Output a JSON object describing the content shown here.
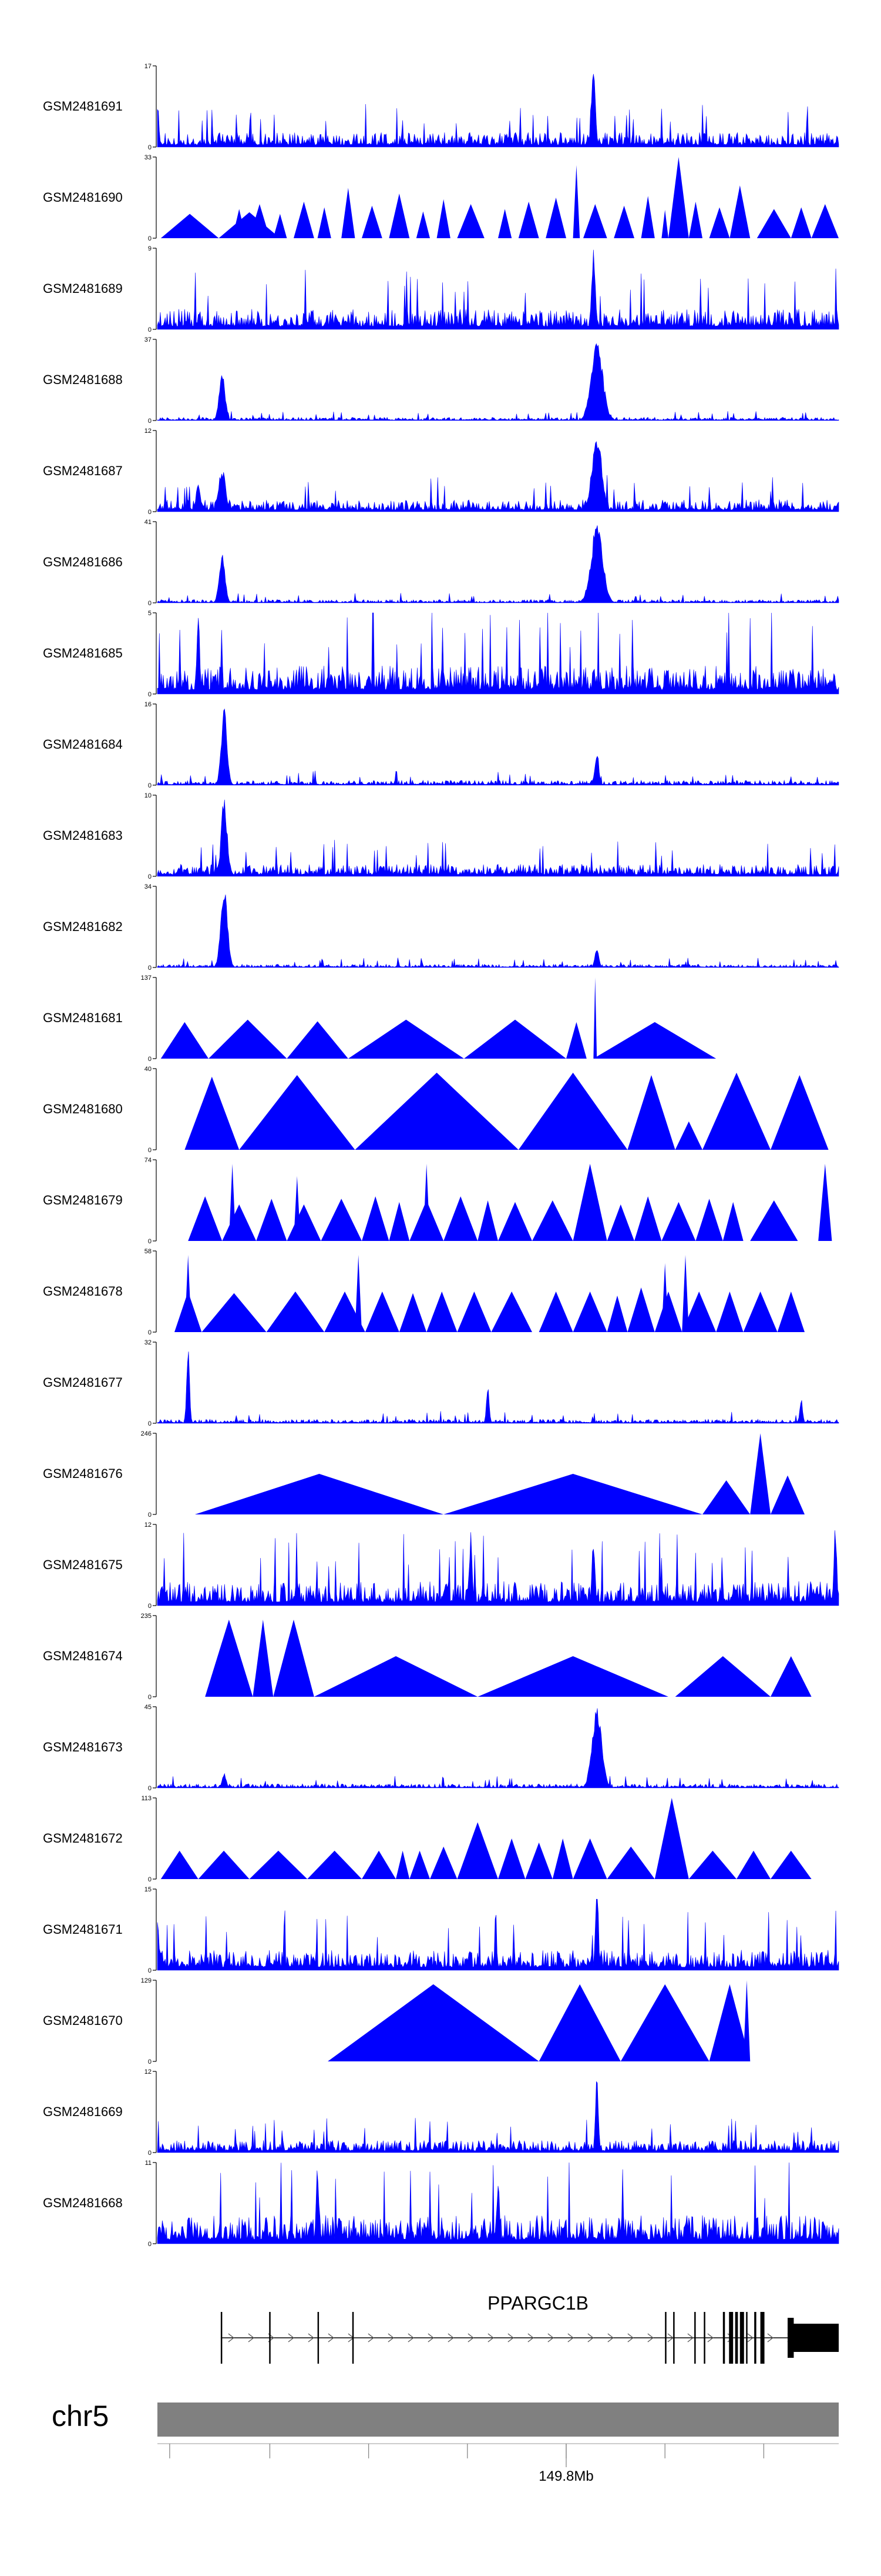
{
  "chart_data": {
    "type": "area",
    "chromosome": "chr5",
    "gene": "PPARGC1B",
    "axis_label": "149.8Mb",
    "colors": {
      "signal": "#0000ff",
      "ideogram": "#808080",
      "gene": "#000000",
      "axis": "#000000",
      "text": "#000000"
    },
    "tracks": [
      {
        "name": "GSM2481691",
        "ymax": 17,
        "ymin": 0,
        "style": "dense",
        "base": 0.18,
        "seed": 11,
        "peaks": [
          {
            "pos": 0.64,
            "h": 1.0,
            "w": 0.004
          },
          {
            "pos": 0.0,
            "h": 0.6,
            "w": 0.003
          }
        ]
      },
      {
        "name": "GSM2481690",
        "ymax": 33,
        "ymin": 0,
        "style": "triangles",
        "tris": [
          [
            0.005,
            0.09,
            0.3
          ],
          [
            0.09,
            0.18,
            0.32
          ],
          [
            0.11,
            0.13,
            0.36
          ],
          [
            0.135,
            0.165,
            0.42
          ],
          [
            0.17,
            0.19,
            0.3
          ],
          [
            0.2,
            0.23,
            0.45
          ],
          [
            0.235,
            0.255,
            0.38
          ],
          [
            0.27,
            0.29,
            0.62
          ],
          [
            0.3,
            0.33,
            0.4
          ],
          [
            0.34,
            0.37,
            0.55
          ],
          [
            0.38,
            0.4,
            0.33
          ],
          [
            0.41,
            0.43,
            0.48
          ],
          [
            0.44,
            0.48,
            0.42
          ],
          [
            0.5,
            0.52,
            0.36
          ],
          [
            0.53,
            0.56,
            0.45
          ],
          [
            0.57,
            0.6,
            0.5
          ],
          [
            0.61,
            0.62,
            0.9
          ],
          [
            0.625,
            0.66,
            0.42
          ],
          [
            0.67,
            0.7,
            0.4
          ],
          [
            0.71,
            0.73,
            0.52
          ],
          [
            0.74,
            0.75,
            0.35
          ],
          [
            0.75,
            0.78,
            1.0
          ],
          [
            0.78,
            0.8,
            0.45
          ],
          [
            0.81,
            0.84,
            0.38
          ],
          [
            0.84,
            0.87,
            0.65
          ],
          [
            0.88,
            0.93,
            0.36
          ],
          [
            0.93,
            0.96,
            0.38
          ],
          [
            0.96,
            1.0,
            0.42
          ]
        ]
      },
      {
        "name": "GSM2481689",
        "ymax": 9,
        "ymin": 0,
        "style": "dense",
        "base": 0.25,
        "seed": 23,
        "peaks": [
          {
            "pos": 0.64,
            "h": 1.0,
            "w": 0.004
          }
        ]
      },
      {
        "name": "GSM2481688",
        "ymax": 37,
        "ymin": 0,
        "style": "dense",
        "base": 0.04,
        "seed": 31,
        "peaks": [
          {
            "pos": 0.095,
            "h": 0.65,
            "w": 0.006
          },
          {
            "pos": 0.645,
            "h": 1.0,
            "w": 0.012
          }
        ]
      },
      {
        "name": "GSM2481687",
        "ymax": 12,
        "ymin": 0,
        "style": "dense",
        "base": 0.15,
        "seed": 37,
        "peaks": [
          {
            "pos": 0.095,
            "h": 0.55,
            "w": 0.007
          },
          {
            "pos": 0.645,
            "h": 1.0,
            "w": 0.01
          },
          {
            "pos": 0.06,
            "h": 0.4,
            "w": 0.004
          }
        ]
      },
      {
        "name": "GSM2481686",
        "ymax": 41,
        "ymin": 0,
        "style": "dense",
        "base": 0.04,
        "seed": 41,
        "peaks": [
          {
            "pos": 0.095,
            "h": 0.65,
            "w": 0.006
          },
          {
            "pos": 0.645,
            "h": 1.0,
            "w": 0.012
          }
        ]
      },
      {
        "name": "GSM2481685",
        "ymax": 5,
        "ymin": 0,
        "style": "dense",
        "base": 0.35,
        "seed": 43,
        "peaks": [
          {
            "pos": 0.06,
            "h": 1.0,
            "w": 0.003
          }
        ]
      },
      {
        "name": "GSM2481684",
        "ymax": 16,
        "ymin": 0,
        "style": "dense",
        "base": 0.06,
        "seed": 47,
        "peaks": [
          {
            "pos": 0.098,
            "h": 1.0,
            "w": 0.006
          },
          {
            "pos": 0.645,
            "h": 0.45,
            "w": 0.004
          }
        ]
      },
      {
        "name": "GSM2481683",
        "ymax": 10,
        "ymin": 0,
        "style": "dense",
        "base": 0.15,
        "seed": 53,
        "peaks": [
          {
            "pos": 0.098,
            "h": 1.0,
            "w": 0.006
          }
        ]
      },
      {
        "name": "GSM2481682",
        "ymax": 34,
        "ymin": 0,
        "style": "dense",
        "base": 0.04,
        "seed": 59,
        "peaks": [
          {
            "pos": 0.098,
            "h": 1.0,
            "w": 0.007
          },
          {
            "pos": 0.645,
            "h": 0.25,
            "w": 0.004
          }
        ]
      },
      {
        "name": "GSM2481681",
        "ymax": 137,
        "ymin": 0,
        "style": "triangles",
        "tris": [
          [
            0.005,
            0.075,
            0.45
          ],
          [
            0.075,
            0.19,
            0.48
          ],
          [
            0.19,
            0.28,
            0.46
          ],
          [
            0.28,
            0.45,
            0.48
          ],
          [
            0.45,
            0.6,
            0.48
          ],
          [
            0.6,
            0.63,
            0.45
          ],
          [
            0.64,
            0.82,
            0.45
          ],
          [
            0.64,
            0.645,
            1.0
          ]
        ]
      },
      {
        "name": "GSM2481680",
        "ymax": 40,
        "ymin": 0,
        "style": "triangles",
        "tris": [
          [
            0.04,
            0.12,
            0.9
          ],
          [
            0.12,
            0.29,
            0.92
          ],
          [
            0.29,
            0.53,
            0.95
          ],
          [
            0.53,
            0.69,
            0.95
          ],
          [
            0.69,
            0.76,
            0.92
          ],
          [
            0.76,
            0.8,
            0.35
          ],
          [
            0.8,
            0.9,
            0.95
          ],
          [
            0.9,
            0.985,
            0.92
          ]
        ]
      },
      {
        "name": "GSM2481679",
        "ymax": 74,
        "ymin": 0,
        "style": "triangles",
        "tris": [
          [
            0.045,
            0.095,
            0.55
          ],
          [
            0.095,
            0.145,
            0.45
          ],
          [
            0.145,
            0.19,
            0.52
          ],
          [
            0.19,
            0.24,
            0.45
          ],
          [
            0.24,
            0.3,
            0.52
          ],
          [
            0.3,
            0.34,
            0.55
          ],
          [
            0.34,
            0.37,
            0.48
          ],
          [
            0.37,
            0.42,
            0.5
          ],
          [
            0.42,
            0.47,
            0.55
          ],
          [
            0.47,
            0.5,
            0.5
          ],
          [
            0.5,
            0.55,
            0.48
          ],
          [
            0.55,
            0.61,
            0.5
          ],
          [
            0.61,
            0.66,
            0.95
          ],
          [
            0.66,
            0.7,
            0.45
          ],
          [
            0.7,
            0.74,
            0.55
          ],
          [
            0.74,
            0.79,
            0.48
          ],
          [
            0.79,
            0.83,
            0.52
          ],
          [
            0.83,
            0.86,
            0.48
          ],
          [
            0.87,
            0.94,
            0.5
          ],
          [
            0.97,
            0.99,
            0.95
          ],
          [
            0.105,
            0.115,
            0.95
          ],
          [
            0.2,
            0.21,
            0.8
          ],
          [
            0.39,
            0.4,
            0.95
          ]
        ]
      },
      {
        "name": "GSM2481678",
        "ymax": 58,
        "ymin": 0,
        "style": "triangles",
        "tris": [
          [
            0.025,
            0.065,
            0.5
          ],
          [
            0.065,
            0.16,
            0.48
          ],
          [
            0.16,
            0.245,
            0.5
          ],
          [
            0.245,
            0.305,
            0.5
          ],
          [
            0.305,
            0.355,
            0.5
          ],
          [
            0.355,
            0.395,
            0.48
          ],
          [
            0.395,
            0.44,
            0.5
          ],
          [
            0.44,
            0.49,
            0.5
          ],
          [
            0.49,
            0.55,
            0.5
          ],
          [
            0.56,
            0.61,
            0.5
          ],
          [
            0.61,
            0.66,
            0.5
          ],
          [
            0.66,
            0.69,
            0.45
          ],
          [
            0.69,
            0.73,
            0.55
          ],
          [
            0.73,
            0.77,
            0.5
          ],
          [
            0.77,
            0.82,
            0.5
          ],
          [
            0.82,
            0.86,
            0.5
          ],
          [
            0.86,
            0.91,
            0.5
          ],
          [
            0.91,
            0.95,
            0.5
          ],
          [
            0.04,
            0.05,
            0.95
          ],
          [
            0.29,
            0.3,
            0.95
          ],
          [
            0.77,
            0.78,
            0.95
          ],
          [
            0.74,
            0.75,
            0.85
          ]
        ]
      },
      {
        "name": "GSM2481677",
        "ymax": 32,
        "ymin": 0,
        "style": "dense",
        "base": 0.05,
        "seed": 61,
        "peaks": [
          {
            "pos": 0.045,
            "h": 1.0,
            "w": 0.003
          },
          {
            "pos": 0.485,
            "h": 0.45,
            "w": 0.003
          },
          {
            "pos": 0.945,
            "h": 0.3,
            "w": 0.003
          }
        ]
      },
      {
        "name": "GSM2481676",
        "ymax": 246,
        "ymin": 0,
        "style": "triangles",
        "tris": [
          [
            0.055,
            0.42,
            0.5
          ],
          [
            0.42,
            0.8,
            0.5
          ],
          [
            0.8,
            0.87,
            0.42
          ],
          [
            0.87,
            0.9,
            1.0
          ],
          [
            0.9,
            0.95,
            0.48
          ]
        ]
      },
      {
        "name": "GSM2481675",
        "ymax": 12,
        "ymin": 0,
        "style": "dense",
        "base": 0.3,
        "seed": 67,
        "peaks": [
          {
            "pos": 0.46,
            "h": 0.95,
            "w": 0.003
          },
          {
            "pos": 0.995,
            "h": 1.0,
            "w": 0.003
          },
          {
            "pos": 0.64,
            "h": 0.9,
            "w": 0.003
          }
        ]
      },
      {
        "name": "GSM2481674",
        "ymax": 235,
        "ymin": 0,
        "style": "triangles",
        "tris": [
          [
            0.07,
            0.14,
            0.95
          ],
          [
            0.14,
            0.17,
            0.95
          ],
          [
            0.17,
            0.23,
            0.95
          ],
          [
            0.23,
            0.47,
            0.5
          ],
          [
            0.47,
            0.75,
            0.5
          ],
          [
            0.76,
            0.9,
            0.5
          ],
          [
            0.9,
            0.96,
            0.5
          ]
        ]
      },
      {
        "name": "GSM2481673",
        "ymax": 45,
        "ymin": 0,
        "style": "dense",
        "base": 0.05,
        "seed": 71,
        "peaks": [
          {
            "pos": 0.645,
            "h": 1.0,
            "w": 0.01
          },
          {
            "pos": 0.098,
            "h": 0.2,
            "w": 0.004
          }
        ]
      },
      {
        "name": "GSM2481672",
        "ymax": 113,
        "ymin": 0,
        "style": "triangles",
        "tris": [
          [
            0.005,
            0.06,
            0.35
          ],
          [
            0.06,
            0.135,
            0.35
          ],
          [
            0.135,
            0.22,
            0.35
          ],
          [
            0.22,
            0.3,
            0.35
          ],
          [
            0.3,
            0.35,
            0.35
          ],
          [
            0.35,
            0.37,
            0.35
          ],
          [
            0.37,
            0.4,
            0.35
          ],
          [
            0.4,
            0.44,
            0.4
          ],
          [
            0.44,
            0.5,
            0.7
          ],
          [
            0.5,
            0.54,
            0.5
          ],
          [
            0.54,
            0.58,
            0.45
          ],
          [
            0.58,
            0.61,
            0.5
          ],
          [
            0.61,
            0.66,
            0.5
          ],
          [
            0.66,
            0.73,
            0.4
          ],
          [
            0.73,
            0.78,
            1.0
          ],
          [
            0.78,
            0.85,
            0.35
          ],
          [
            0.85,
            0.9,
            0.35
          ],
          [
            0.9,
            0.96,
            0.35
          ]
        ]
      },
      {
        "name": "GSM2481671",
        "ymax": 15,
        "ymin": 0,
        "style": "dense",
        "base": 0.25,
        "seed": 73,
        "peaks": [
          {
            "pos": 0.645,
            "h": 1.0,
            "w": 0.003
          },
          {
            "pos": 0.0,
            "h": 0.7,
            "w": 0.003
          }
        ]
      },
      {
        "name": "GSM2481670",
        "ymax": 129,
        "ymin": 0,
        "style": "triangles",
        "tris": [
          [
            0.25,
            0.56,
            0.95
          ],
          [
            0.56,
            0.68,
            0.95
          ],
          [
            0.68,
            0.81,
            0.95
          ],
          [
            0.81,
            0.87,
            0.95
          ],
          [
            0.86,
            0.87,
            1.0
          ]
        ]
      },
      {
        "name": "GSM2481669",
        "ymax": 12,
        "ymin": 0,
        "style": "dense",
        "base": 0.15,
        "seed": 79,
        "peaks": [
          {
            "pos": 0.645,
            "h": 1.0,
            "w": 0.003
          }
        ]
      },
      {
        "name": "GSM2481668",
        "ymax": 11,
        "ymin": 0,
        "style": "dense",
        "base": 0.35,
        "seed": 83,
        "peaks": [
          {
            "pos": 0.235,
            "h": 1.0,
            "w": 0.003
          },
          {
            "pos": 0.5,
            "h": 0.8,
            "w": 0.003
          }
        ]
      }
    ],
    "exon_positions": [
      0.11,
      0.16,
      0.24,
      0.28,
      0.405,
      0.4,
      0.455,
      0.46,
      0.465,
      0.476,
      0.484
    ],
    "exons": [
      [
        0.093,
        0.095
      ],
      [
        0.164,
        0.166
      ],
      [
        0.235,
        0.237
      ],
      [
        0.286,
        0.288
      ],
      [
        0.745,
        0.747
      ],
      [
        0.757,
        0.759
      ],
      [
        0.788,
        0.79
      ],
      [
        0.802,
        0.804
      ],
      [
        0.83,
        0.833
      ],
      [
        0.839,
        0.845
      ],
      [
        0.848,
        0.852
      ],
      [
        0.855,
        0.861
      ],
      [
        0.864,
        0.866
      ],
      [
        0.876,
        0.879
      ],
      [
        0.885,
        0.891
      ],
      [
        0.932,
        1.0
      ]
    ],
    "ideogram_ticks": [
      0.018,
      0.165,
      0.31,
      0.455,
      0.6,
      0.745,
      0.89
    ],
    "label_tick": 0.6
  }
}
